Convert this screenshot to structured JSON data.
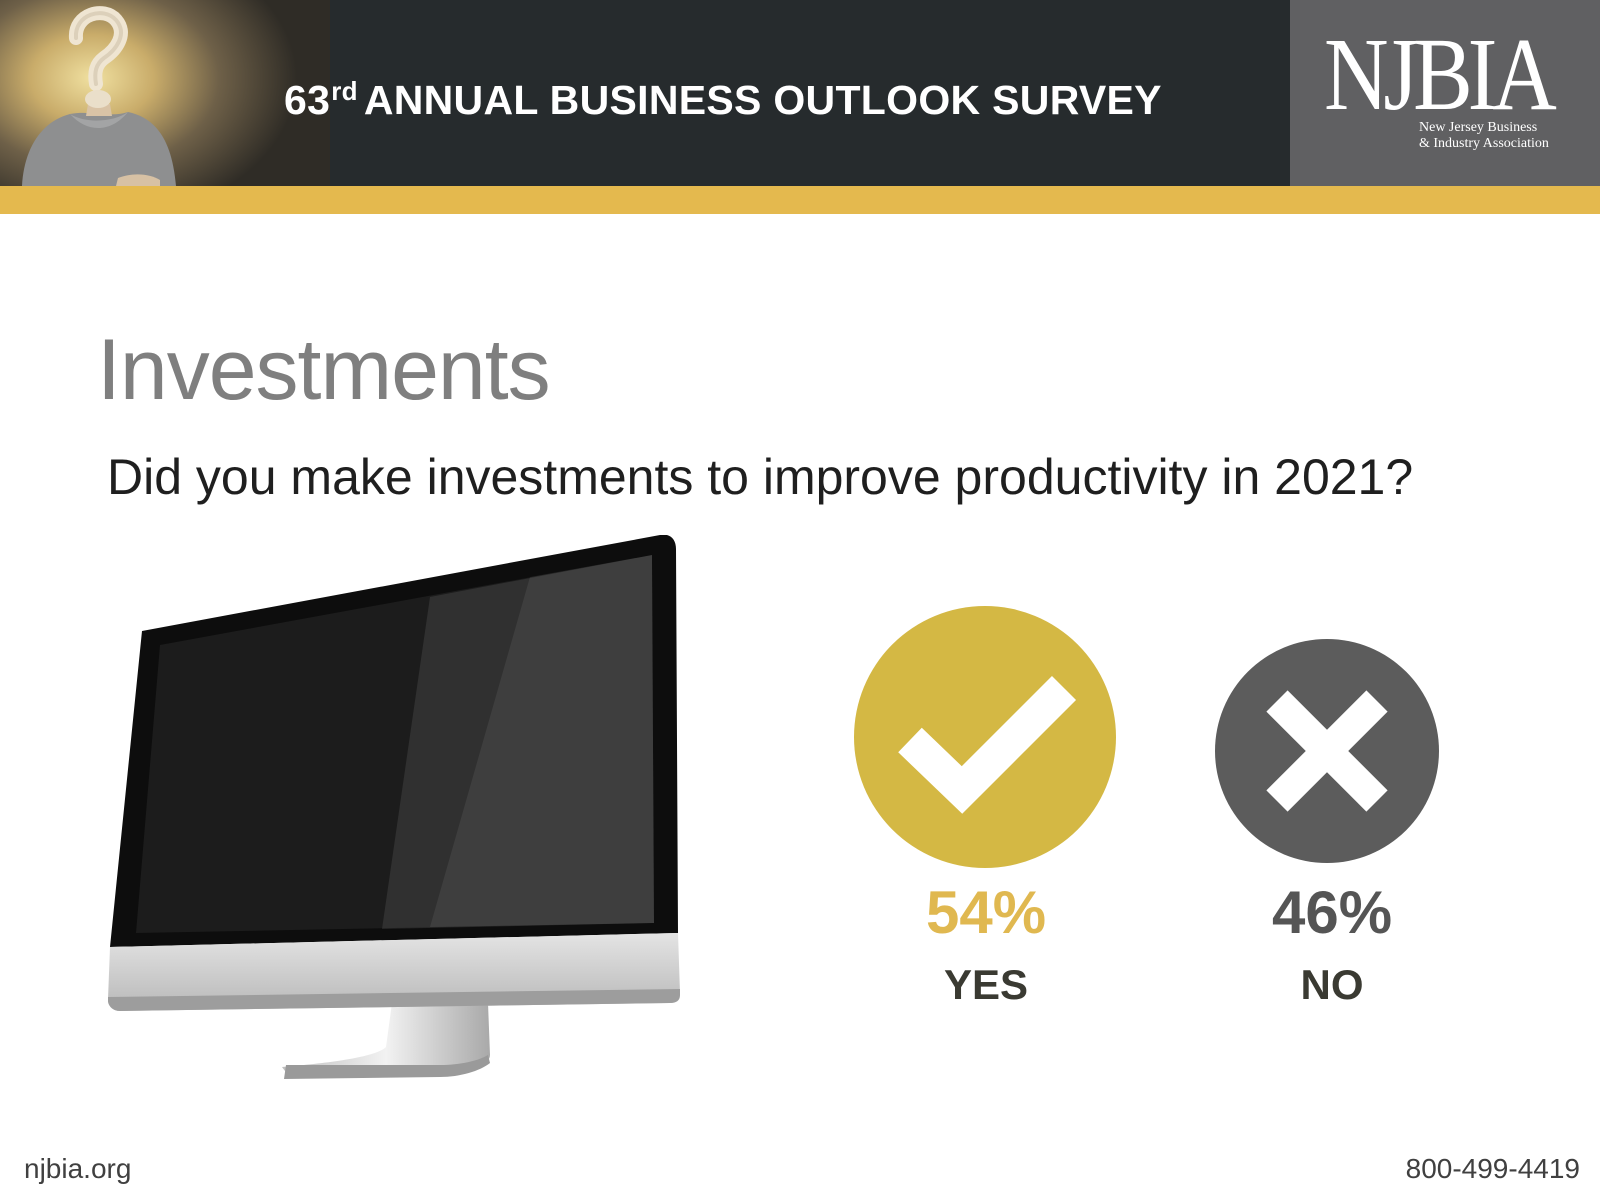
{
  "header": {
    "title_number": "63",
    "title_superscript": "rd",
    "title_text": "ANNUAL BUSINESS OUTLOOK SURVEY",
    "logo_wordmark": "NJBIA",
    "logo_subtitle_line1": "New Jersey Business",
    "logo_subtitle_line2": "& Industry Association"
  },
  "main": {
    "heading": "Investments",
    "question": "Did you make investments to improve productivity in 2021?",
    "options": [
      {
        "answer": "YES",
        "percent": "54%",
        "color": "#d4b844",
        "icon": "checkmark-icon"
      },
      {
        "answer": "NO",
        "percent": "46%",
        "color": "#5c5c5c",
        "icon": "x-mark-icon"
      }
    ]
  },
  "footer": {
    "website": "njbia.org",
    "phone": "800-499-4419"
  },
  "colors": {
    "banner": "#262b2d",
    "accent_gold": "#e4b94e",
    "logo_box": "#606062",
    "yes_percent_text": "#e0b850",
    "no_percent_text": "#555555"
  }
}
